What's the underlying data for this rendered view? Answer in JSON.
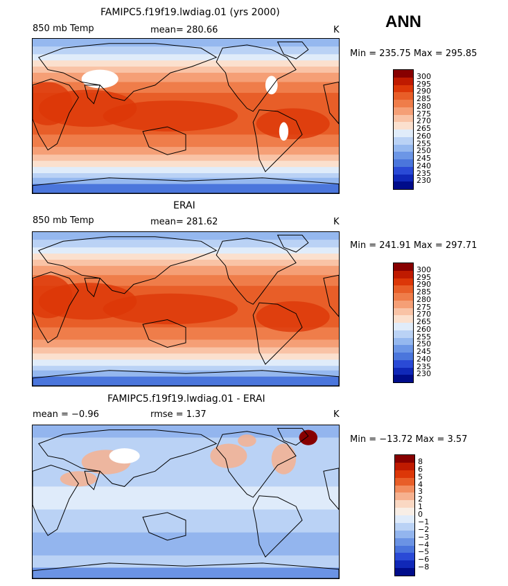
{
  "season": "ANN",
  "colorscale": {
    "abs": [
      "#870000",
      "#bf1a00",
      "#dc3708",
      "#e85e28",
      "#ef7d4a",
      "#f59f76",
      "#f9c3a6",
      "#fbe0ce",
      "#e0ecfa",
      "#bad2f5",
      "#95b8ef",
      "#6c96e6",
      "#4b76dc",
      "#2a4ad6",
      "#1028b8",
      "#000c8a"
    ],
    "diff": [
      "#870000",
      "#bf1a00",
      "#dc3708",
      "#e85e28",
      "#f28d5e",
      "#f6b18f",
      "#fad8c3",
      "#f8eee6",
      "#dfebfa",
      "#bad2f5",
      "#93b5ee",
      "#6b93e4",
      "#4a74dc",
      "#2a4ad6",
      "#1028b8",
      "#000c8a"
    ]
  },
  "panels": [
    {
      "title": "FAMIPC5.f19f19.lwdiag.01 (yrs 2000)",
      "left": "850 mb Temp",
      "center": "mean= 280.66",
      "unit": "K",
      "minmax": "Min = 235.75 Max = 295.85",
      "scale": "abs",
      "levels": [
        "300",
        "295",
        "290",
        "285",
        "280",
        "275",
        "270",
        "265",
        "260",
        "255",
        "250",
        "245",
        "240",
        "235",
        "230"
      ]
    },
    {
      "title": "ERAI",
      "left": "850 mb Temp",
      "center": "mean= 281.62",
      "unit": "K",
      "minmax": "Min = 241.91 Max = 297.71",
      "scale": "abs",
      "levels": [
        "300",
        "295",
        "290",
        "285",
        "280",
        "275",
        "270",
        "265",
        "260",
        "255",
        "250",
        "245",
        "240",
        "235",
        "230"
      ]
    },
    {
      "title": "FAMIPC5.f19f19.lwdiag.01 - ERAI",
      "left": "mean =   −0.96",
      "center": "rmse =    1.37",
      "unit": "K",
      "minmax": "Min = −13.72 Max =    3.57",
      "scale": "diff",
      "levels": [
        "8",
        "6",
        "5",
        "4",
        "3",
        "2",
        "1",
        "0",
        "−1",
        "−2",
        "−3",
        "−4",
        "−5",
        "−6",
        "−8"
      ]
    }
  ]
}
